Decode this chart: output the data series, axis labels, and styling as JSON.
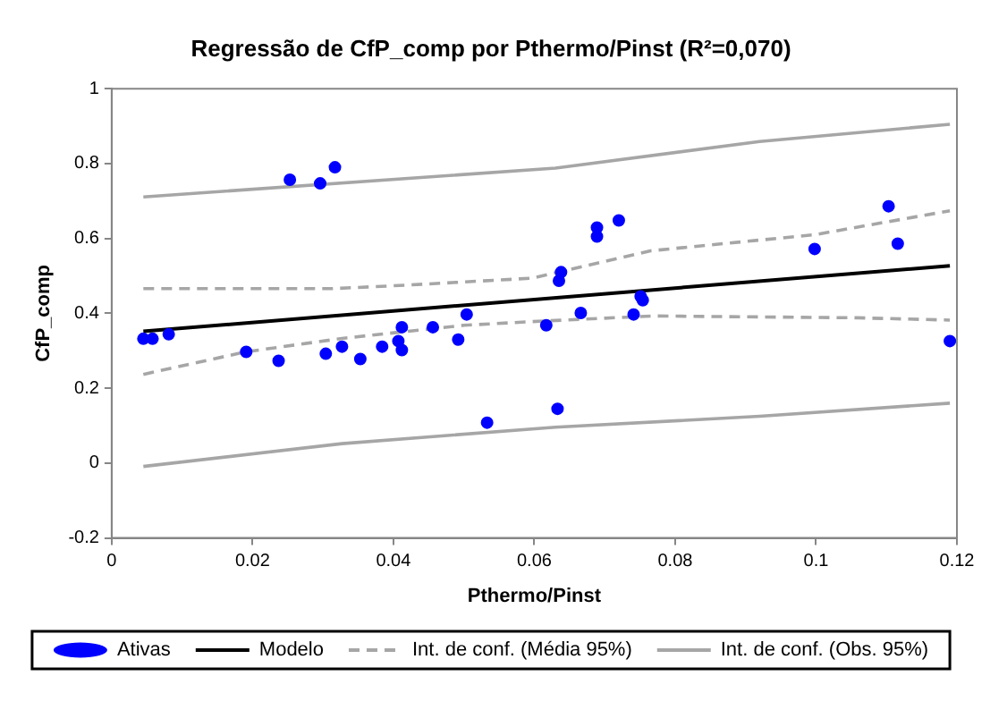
{
  "chart_data": {
    "type": "scatter",
    "title": "Regressão de CfP_comp por Pthermo/Pinst (R²=0,070)",
    "xlabel": "Pthermo/Pinst",
    "ylabel": "CfP_comp",
    "xlim": [
      0,
      0.12
    ],
    "xticks": [
      0,
      0.02,
      0.04,
      0.06,
      0.08,
      0.1,
      0.12
    ],
    "ylim": [
      -0.2,
      1
    ],
    "yticks": [
      -0.2,
      0,
      0.2,
      0.4,
      0.6,
      0.8,
      1
    ],
    "grid": false,
    "legend": "bottom",
    "series": [
      {
        "name": "Ativas",
        "marker": "circle",
        "color": "#0000ff",
        "x": [
          0.0045,
          0.0058,
          0.0081,
          0.0191,
          0.0237,
          0.0253,
          0.0296,
          0.0317,
          0.0304,
          0.0327,
          0.0353,
          0.0384,
          0.0407,
          0.0412,
          0.0412,
          0.0456,
          0.0492,
          0.0504,
          0.0533,
          0.0617,
          0.0633,
          0.0635,
          0.0638,
          0.0666,
          0.0689,
          0.0689,
          0.072,
          0.0741,
          0.0751,
          0.0754,
          0.0998,
          0.1103,
          0.1116,
          0.119
        ],
        "values": [
          0.332,
          0.332,
          0.344,
          0.297,
          0.273,
          0.757,
          0.747,
          0.79,
          0.292,
          0.311,
          0.278,
          0.311,
          0.326,
          0.363,
          0.302,
          0.363,
          0.33,
          0.397,
          0.108,
          0.368,
          0.145,
          0.487,
          0.51,
          0.401,
          0.629,
          0.605,
          0.648,
          0.397,
          0.445,
          0.435,
          0.572,
          0.686,
          0.586,
          0.326
        ]
      },
      {
        "name": "Modelo",
        "type": "line",
        "marker": "none",
        "line_style": "solid",
        "color": "#000000",
        "x": [
          0.0045,
          0.119
        ],
        "values": [
          0.352,
          0.527
        ]
      },
      {
        "name": "Int. de conf. (Média 95%)",
        "type": "line",
        "marker": "none",
        "line_style": "dashed",
        "color": "#a6a6a6",
        "x": [
          0.0045,
          0.0313,
          0.0416,
          0.0597,
          0.0765,
          0.0998,
          0.119
        ],
        "values": [
          0.466,
          0.466,
          0.475,
          0.494,
          0.567,
          0.61,
          0.674
        ]
      },
      {
        "type": "line",
        "marker": "none",
        "line_style": "dashed",
        "color": "#a6a6a6",
        "x": [
          0.0045,
          0.019,
          0.0327,
          0.05,
          0.0597,
          0.0768,
          0.1059,
          0.119
        ],
        "values": [
          0.237,
          0.297,
          0.333,
          0.368,
          0.378,
          0.393,
          0.388,
          0.382
        ]
      },
      {
        "name": "Int. de conf. (Obs. 95%)",
        "type": "line",
        "marker": "none",
        "line_style": "solid",
        "color": "#a6a6a6",
        "x": [
          0.0045,
          0.063,
          0.092,
          0.119
        ],
        "values": [
          0.711,
          0.788,
          0.859,
          0.905
        ]
      },
      {
        "type": "line",
        "marker": "none",
        "line_style": "solid",
        "color": "#a6a6a6",
        "x": [
          0.0045,
          0.0327,
          0.063,
          0.092,
          0.119
        ],
        "values": [
          -0.009,
          0.052,
          0.096,
          0.125,
          0.16
        ]
      }
    ]
  }
}
